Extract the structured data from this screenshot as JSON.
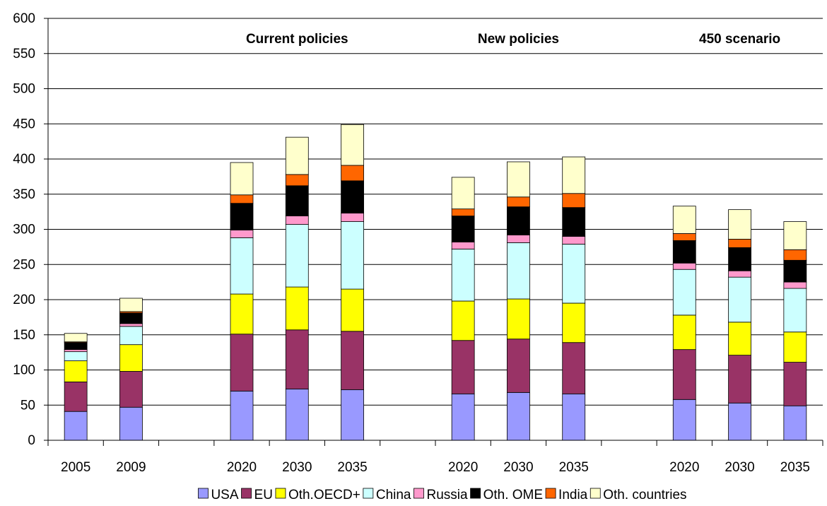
{
  "chart_data": {
    "type": "bar",
    "stacked": true,
    "categories": [
      "2005",
      "2009",
      "",
      "2020",
      "2030",
      "2035",
      "",
      "2020",
      "2030",
      "2035",
      "",
      "2020",
      "2030",
      "2035"
    ],
    "scenario_labels": [
      "Current policies",
      "New policies",
      "450 scenario"
    ],
    "ylim": [
      0,
      600
    ],
    "yticks": [
      0,
      50,
      100,
      150,
      200,
      250,
      300,
      350,
      400,
      450,
      500,
      550,
      600
    ],
    "grid": true,
    "legend_position": "bottom",
    "series": [
      {
        "name": "USA",
        "color": "#9999ff",
        "values": [
          41,
          47,
          null,
          70,
          73,
          72,
          null,
          66,
          68,
          66,
          null,
          58,
          53,
          49
        ]
      },
      {
        "name": "EU",
        "color": "#993366",
        "values": [
          42,
          51,
          null,
          81,
          84,
          83,
          null,
          76,
          76,
          73,
          null,
          71,
          68,
          62
        ]
      },
      {
        "name": "Oth.OECD+",
        "color": "#ffff00",
        "values": [
          30,
          38,
          null,
          57,
          61,
          60,
          null,
          56,
          57,
          56,
          null,
          49,
          47,
          43
        ]
      },
      {
        "name": "China",
        "color": "#ccffff",
        "values": [
          13,
          26,
          null,
          80,
          89,
          96,
          null,
          74,
          80,
          84,
          null,
          65,
          64,
          62
        ]
      },
      {
        "name": "Russia",
        "color": "#ff99cc",
        "values": [
          3,
          4,
          null,
          11,
          12,
          12,
          null,
          10,
          11,
          11,
          null,
          9,
          9,
          9
        ]
      },
      {
        "name": "Oth. OME",
        "color": "#000000",
        "values": [
          10,
          15,
          null,
          38,
          43,
          46,
          null,
          37,
          40,
          41,
          null,
          32,
          33,
          31
        ]
      },
      {
        "name": "India",
        "color": "#ff6600",
        "values": [
          1,
          2,
          null,
          12,
          16,
          22,
          null,
          10,
          14,
          20,
          null,
          10,
          12,
          15
        ]
      },
      {
        "name": "Oth. countries",
        "color": "#ffffcc",
        "values": [
          12,
          19,
          null,
          46,
          53,
          58,
          null,
          45,
          50,
          52,
          null,
          39,
          42,
          40
        ]
      }
    ]
  }
}
